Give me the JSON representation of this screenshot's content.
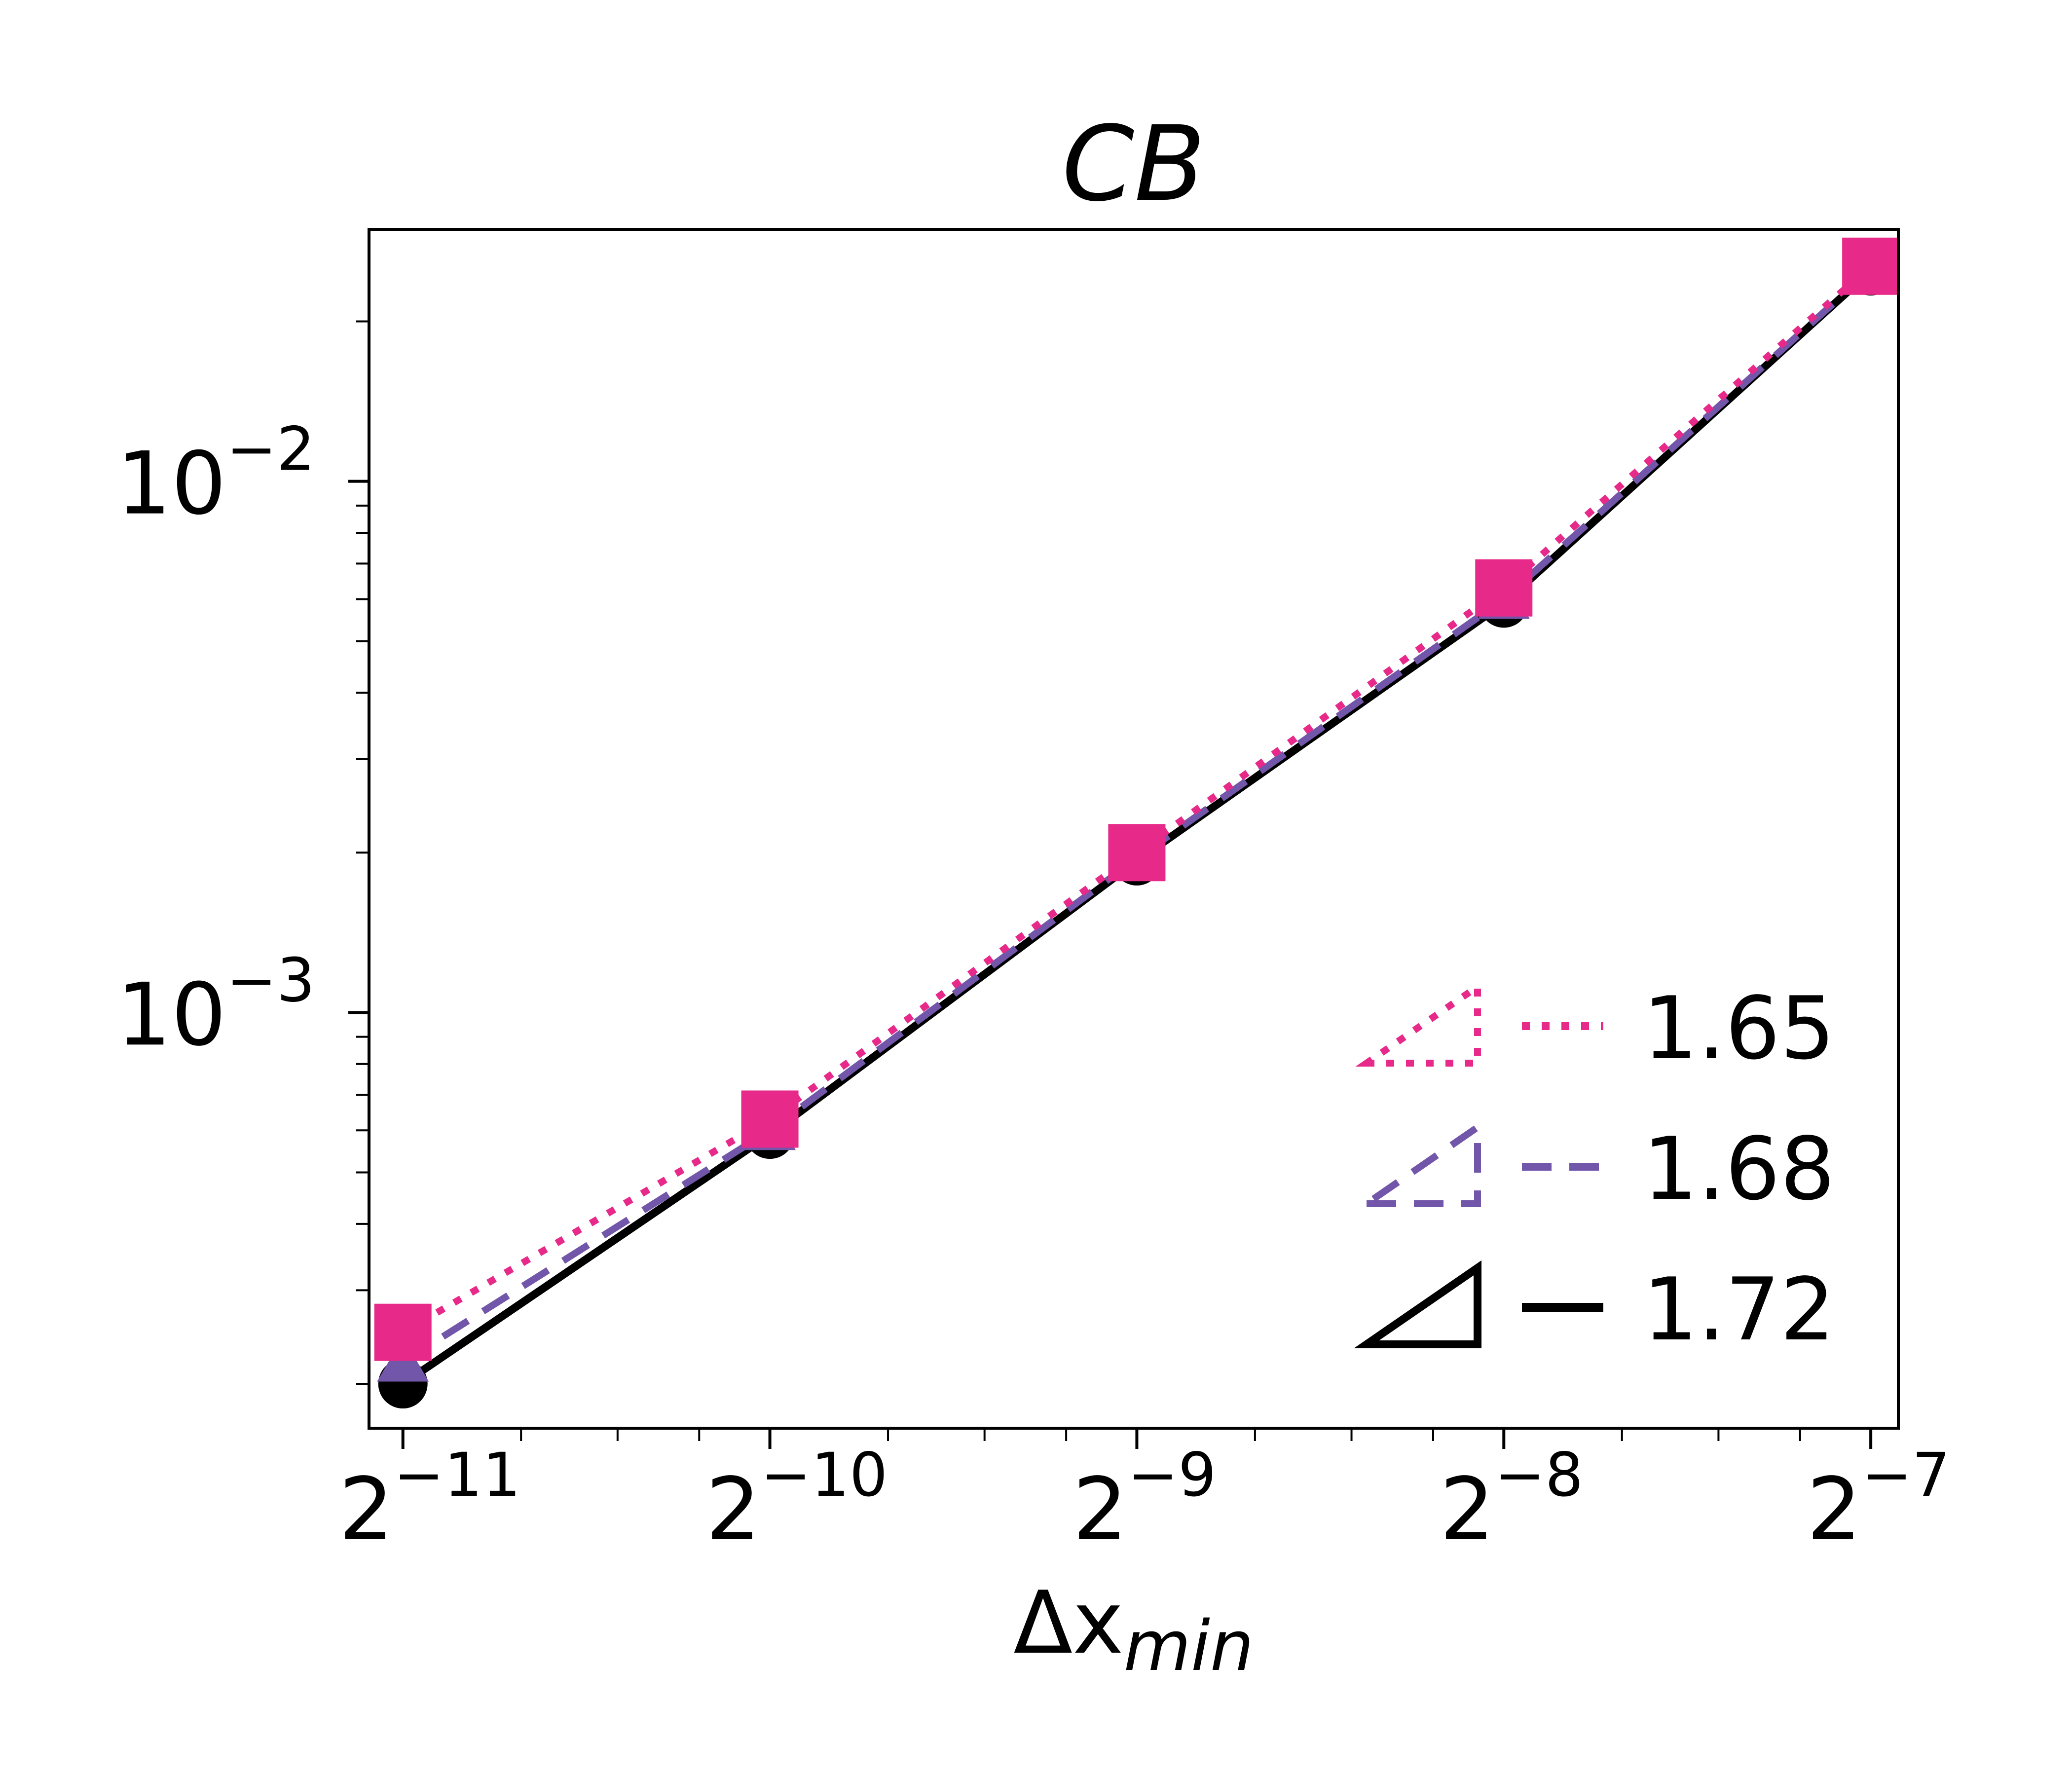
{
  "chart_data": {
    "type": "line",
    "title": "CB",
    "xlabel": "Δx",
    "xlabel_sub": "min",
    "ylabel": "",
    "xscale": "log2",
    "yscale": "log10",
    "xlim": [
      0.000458,
      0.00823
    ],
    "ylim": [
      0.000165,
      0.0298
    ],
    "grid": false,
    "legend_position": "lower-right",
    "x": [
      0.00048828125,
      0.0009765625,
      0.001953125,
      0.00390625,
      0.0078125
    ],
    "x_ticks": [
      {
        "base": "2",
        "exp": "−11"
      },
      {
        "base": "2",
        "exp": "−10"
      },
      {
        "base": "2",
        "exp": "−9"
      },
      {
        "base": "2",
        "exp": "−8"
      },
      {
        "base": "2",
        "exp": "−7"
      }
    ],
    "y_ticks": [
      {
        "value": 0.001,
        "base": "10",
        "exp": "−3"
      },
      {
        "value": 0.01,
        "base": "10",
        "exp": "−2"
      }
    ],
    "series": [
      {
        "name": "1.72",
        "values": [
          0.0002,
          0.00059,
          0.00193,
          0.0059,
          0.0249
        ],
        "color": "#000000",
        "dash": "solid",
        "marker": "circle"
      },
      {
        "name": "1.68",
        "values": [
          0.00022,
          0.0006,
          0.00195,
          0.006,
          0.025
        ],
        "color": "#7256a9",
        "dash": "dashed",
        "marker": "triangle"
      },
      {
        "name": "1.65",
        "values": [
          0.00025,
          0.00063,
          0.002,
          0.0063,
          0.0254
        ],
        "color": "#e7298a",
        "dash": "dotted",
        "marker": "square"
      }
    ]
  }
}
